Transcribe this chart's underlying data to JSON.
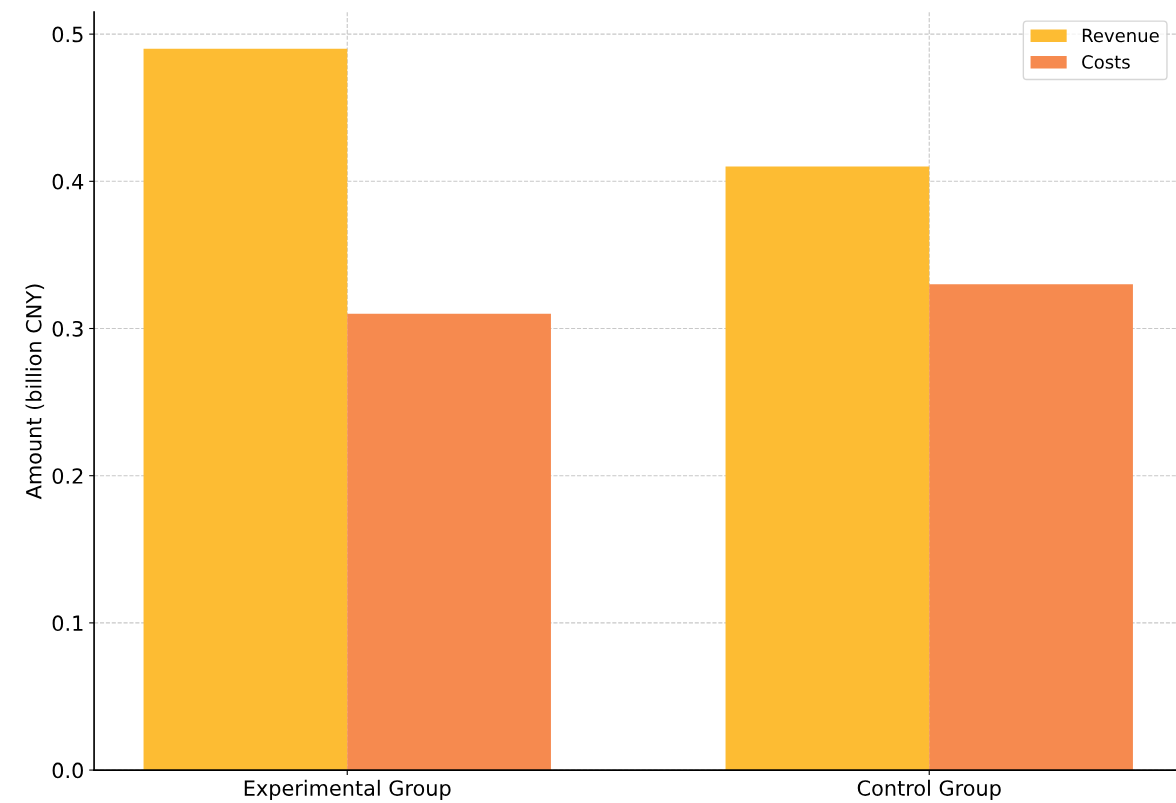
{
  "chart_data": {
    "type": "bar",
    "ylabel": "Amount (billion CNY)",
    "categories": [
      "Experimental Group",
      "Control Group"
    ],
    "series": [
      {
        "name": "Revenue",
        "color": "#fdbc33",
        "values": [
          0.49,
          0.41
        ]
      },
      {
        "name": "Costs",
        "color": "#f68a4f",
        "values": [
          0.31,
          0.33
        ]
      }
    ],
    "ylim": [
      0,
      0.515
    ],
    "yticks": [
      {
        "value": 0,
        "label": "0.0"
      },
      0.1,
      0.2,
      0.3,
      0.4,
      0.5
    ],
    "grid": true,
    "legend": "top right"
  }
}
